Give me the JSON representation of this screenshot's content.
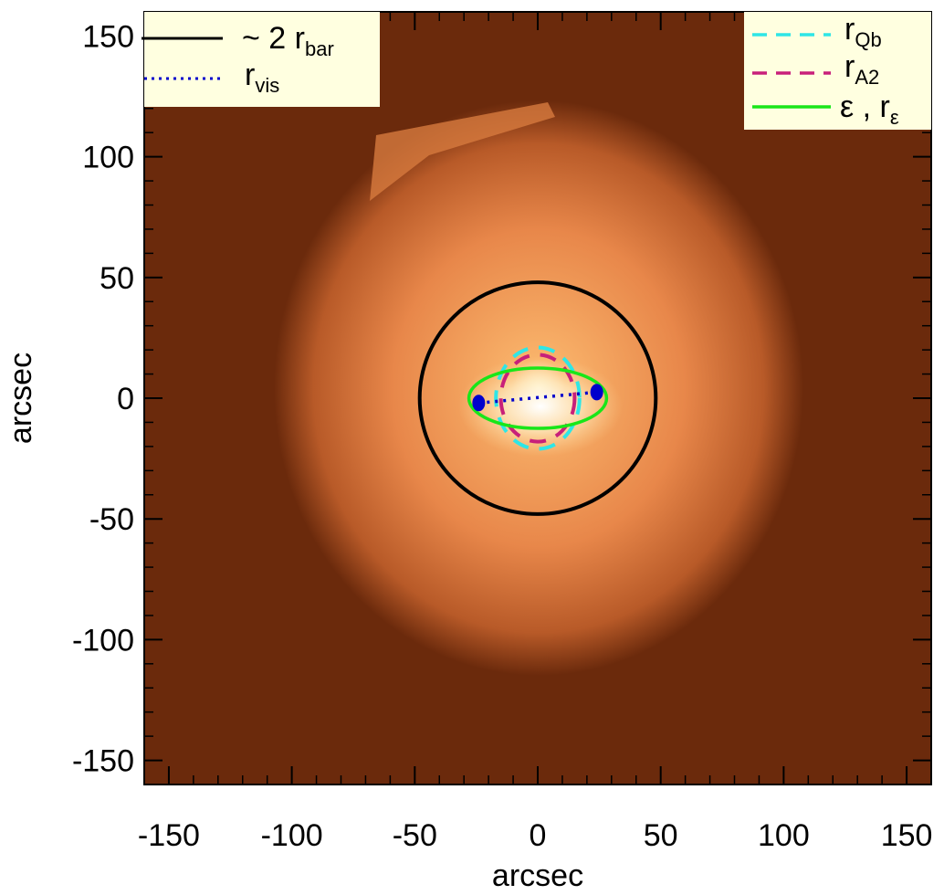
{
  "chart_data": {
    "type": "image",
    "xlabel": "arcsec",
    "ylabel": "arcsec",
    "xlim": [
      -160,
      160
    ],
    "ylim": [
      -160,
      160
    ],
    "xticks": [
      -150,
      -100,
      -50,
      0,
      50,
      100,
      150
    ],
    "yticks": [
      -150,
      -100,
      -50,
      0,
      50,
      100,
      150
    ],
    "xtick_labels": [
      "-150",
      "-100",
      "-50",
      "0",
      "50",
      "100",
      "150"
    ],
    "ytick_labels": [
      "-150",
      "-100",
      "-50",
      "0",
      "50",
      "100",
      "150"
    ],
    "background_color": "#6b2a0c",
    "galaxy_colors": [
      "#fff6d8",
      "#f9b36a",
      "#e8874a",
      "#b85a28"
    ],
    "overlays": [
      {
        "key": "two_r_bar",
        "shape": "circle",
        "cx": 0,
        "cy": 0,
        "rx": 48,
        "ry": 48,
        "angle_deg": 0,
        "color": "#000000",
        "style": "solid"
      },
      {
        "key": "r_Qb",
        "shape": "ellipse",
        "cx": 0,
        "cy": 0,
        "rx": 17,
        "ry": 21,
        "angle_deg": 0,
        "color": "#2ee6e6",
        "style": "dashed"
      },
      {
        "key": "r_A2",
        "shape": "ellipse",
        "cx": 0,
        "cy": 0,
        "rx": 15,
        "ry": 18,
        "angle_deg": 0,
        "color": "#c8207a",
        "style": "dashed"
      },
      {
        "key": "epsilon",
        "shape": "ellipse",
        "cx": 0,
        "cy": 0,
        "rx": 28,
        "ry": 12.5,
        "angle_deg": 0,
        "color": "#19e619",
        "style": "solid"
      }
    ],
    "r_vis_line": {
      "x": [
        -24,
        24
      ],
      "y": [
        -2,
        2.5
      ],
      "color": "#0000cc",
      "style": "dotted"
    },
    "r_vis_endpoints": [
      {
        "x": -24,
        "y": -2
      },
      {
        "x": 24,
        "y": 2.5
      }
    ],
    "legend_left": {
      "placement": "top-left",
      "items": [
        {
          "prefix": "~ 2 r",
          "sub": "bar",
          "color": "#000000",
          "style": "solid"
        },
        {
          "prefix": "r",
          "sub": "vis",
          "color": "#0000cc",
          "style": "dotted"
        }
      ]
    },
    "legend_right": {
      "placement": "top-right",
      "items": [
        {
          "prefix": "r",
          "sub": "Qb",
          "color": "#2ee6e6",
          "style": "dashed"
        },
        {
          "prefix": "r",
          "sub": "A2",
          "color": "#c8207a",
          "style": "dashed"
        },
        {
          "prefix": "ε , r",
          "sub": "ε",
          "color": "#19e619",
          "style": "solid"
        }
      ]
    }
  }
}
